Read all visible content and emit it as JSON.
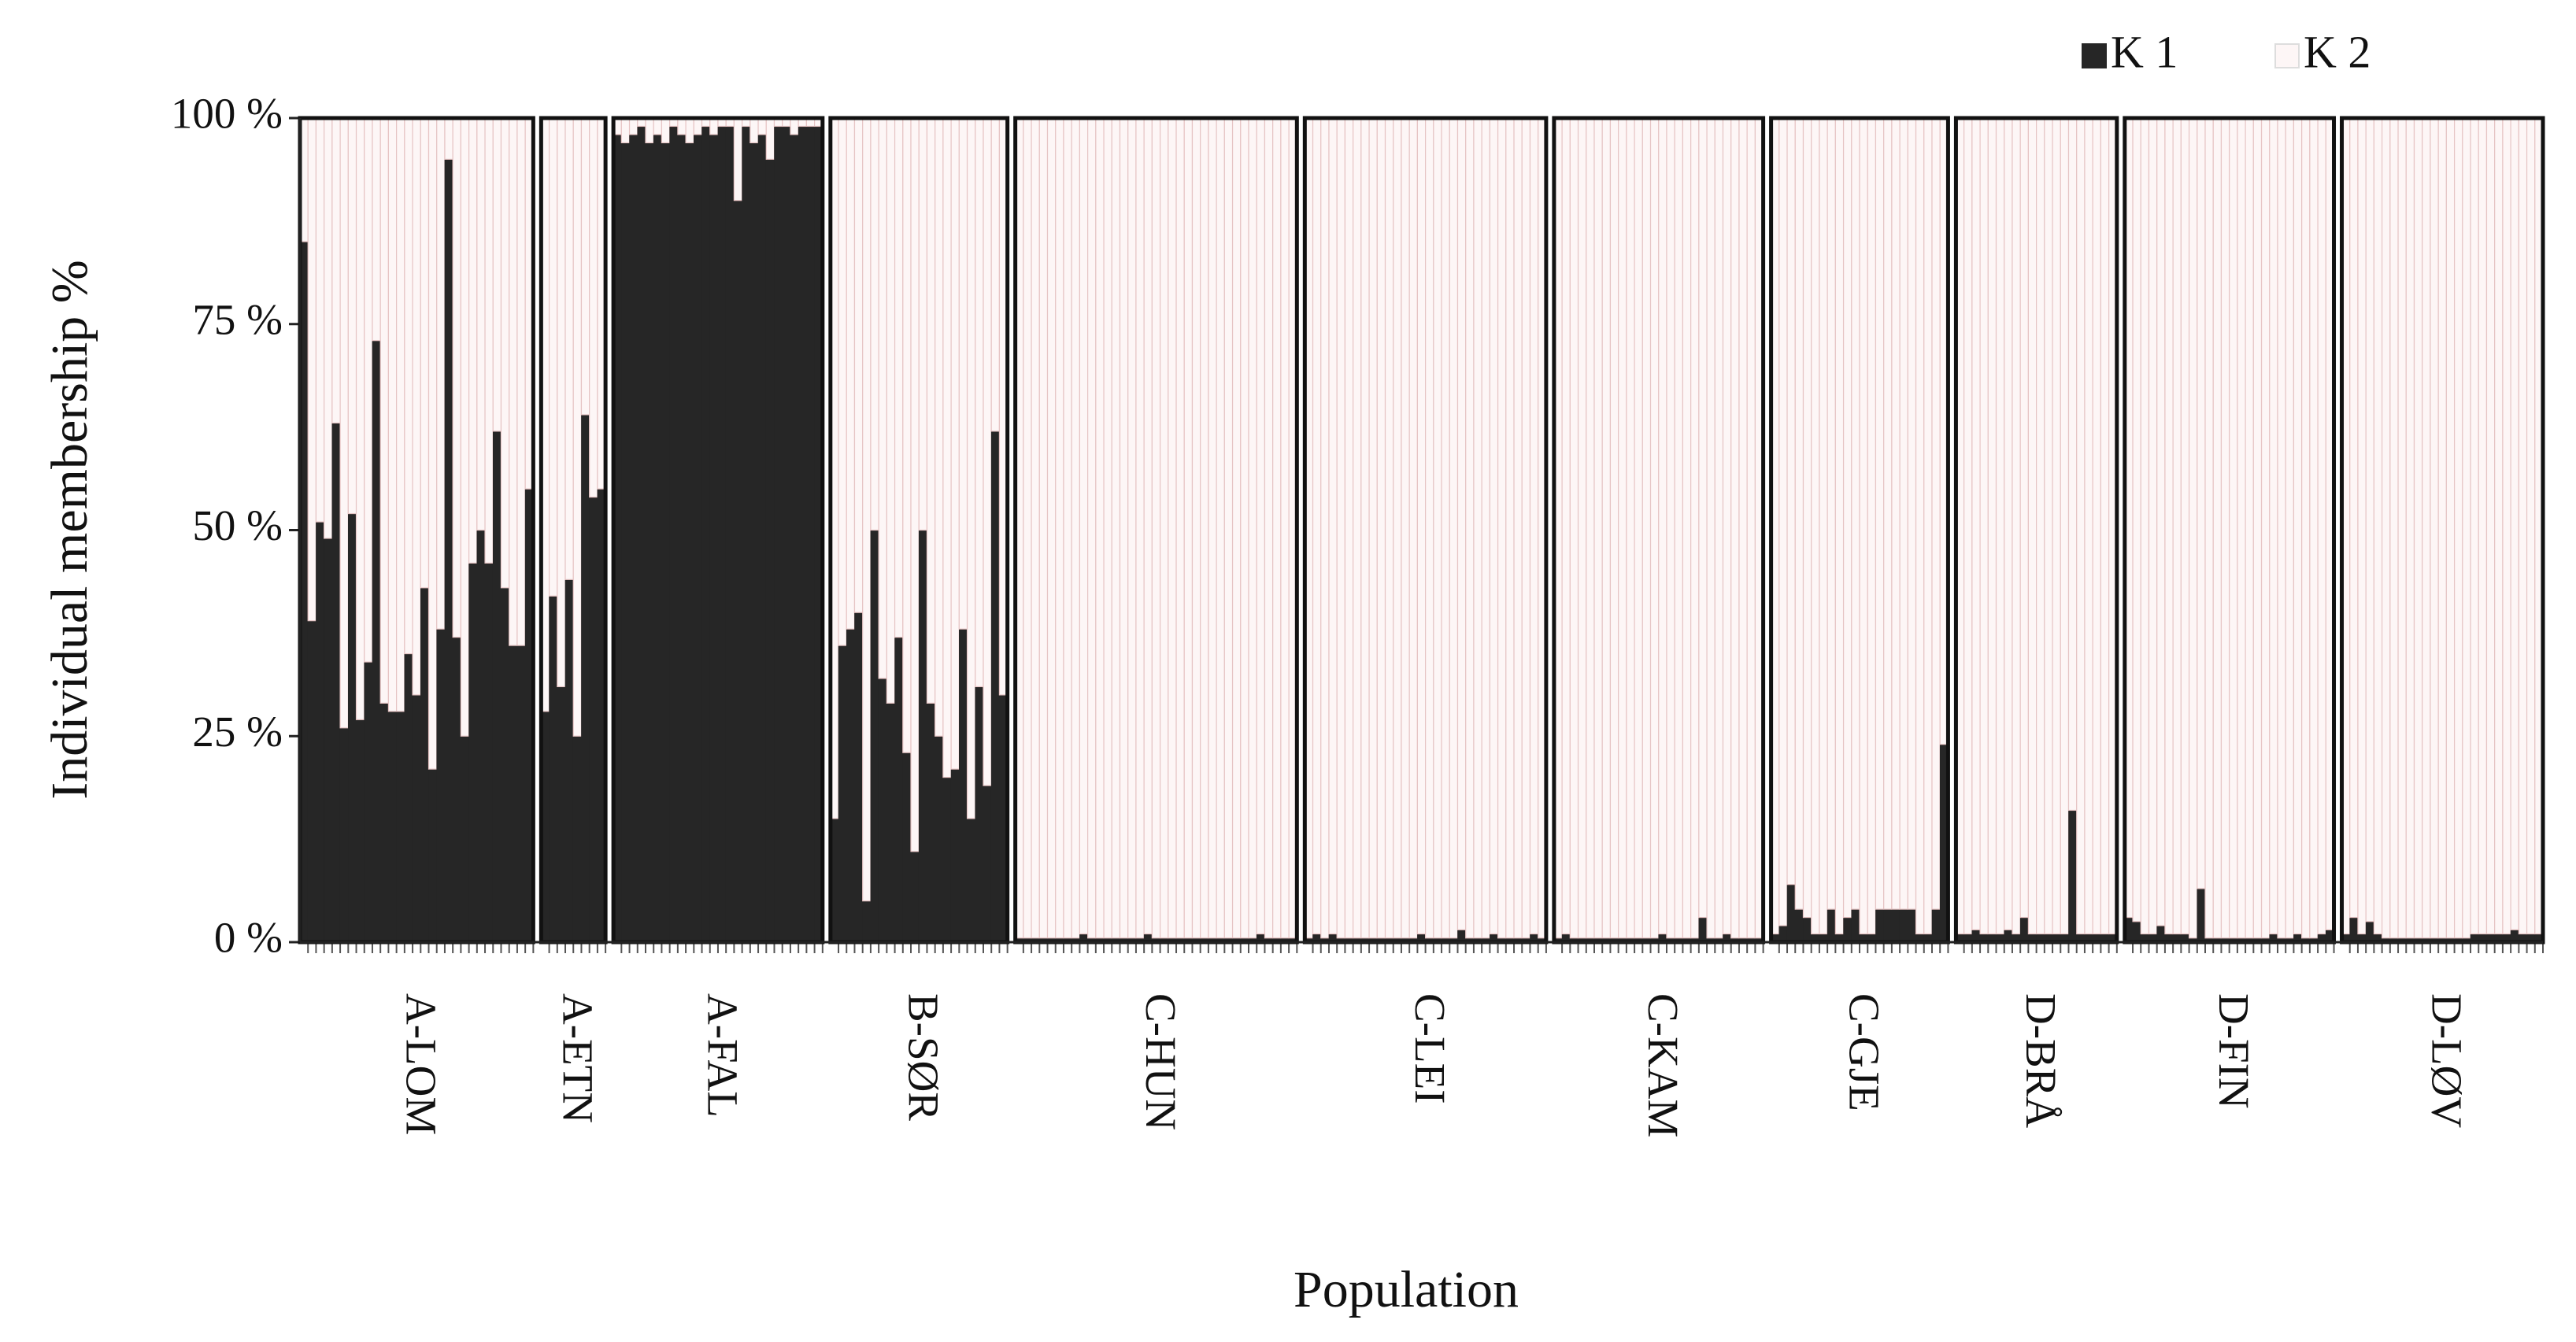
{
  "chart_data": {
    "type": "stacked-bar",
    "x_label": "Population",
    "y_label": "Individual membership %",
    "categories": [
      "A-LOM",
      "A-ETN",
      "A-FAL",
      "B-SØR",
      "C-HUN",
      "C-LEI",
      "C-KAM",
      "C-GJE",
      "D-BRÅ",
      "D-FIN",
      "D-LØV"
    ],
    "ylim": [
      0,
      100
    ],
    "yticks": [
      {
        "value": 0,
        "label": "0 %"
      },
      {
        "value": 25,
        "label": "25 %"
      },
      {
        "value": 50,
        "label": "50 %"
      },
      {
        "value": 75,
        "label": "75 %"
      },
      {
        "value": 100,
        "label": "100 %"
      }
    ],
    "grid": false,
    "legend": "top-right",
    "series": [
      {
        "name": "K 1",
        "color": "#262626",
        "values": [
          [
            85,
            39,
            51,
            49,
            63,
            26,
            52,
            27,
            34,
            73,
            29,
            28,
            28,
            35,
            30,
            43,
            21,
            38,
            95,
            37,
            25,
            46,
            50,
            46,
            62,
            43,
            36,
            36,
            55
          ],
          [
            28,
            42,
            31,
            44,
            25,
            64,
            54,
            55
          ],
          [
            98,
            97,
            98,
            99,
            97,
            98,
            97,
            99,
            98,
            97,
            98,
            99,
            98,
            99,
            99,
            90,
            99,
            97,
            98,
            95,
            99,
            99,
            98,
            99,
            99,
            99
          ],
          [
            15,
            36,
            38,
            40,
            5,
            50,
            32,
            29,
            37,
            23,
            11,
            50,
            29,
            25,
            20,
            21,
            38,
            15,
            31,
            19,
            62,
            30
          ],
          [
            0.5,
            0.5,
            0.5,
            0.5,
            0.5,
            0.5,
            0.5,
            0.5,
            1,
            0.5,
            0.5,
            0.5,
            0.5,
            0.5,
            0.5,
            0.5,
            1,
            0.5,
            0.5,
            0.5,
            0.5,
            0.5,
            0.5,
            0.5,
            0.5,
            0.5,
            0.5,
            0.5,
            0.5,
            0.5,
            1,
            0.5,
            0.5,
            0.5,
            0.5
          ],
          [
            0.5,
            1,
            0.5,
            1,
            0.5,
            0.5,
            0.5,
            0.5,
            0.5,
            0.5,
            0.5,
            0.5,
            0.5,
            0.5,
            1,
            0.5,
            0.5,
            0.5,
            0.5,
            1.5,
            0.5,
            0.5,
            0.5,
            1,
            0.5,
            0.5,
            0.5,
            0.5,
            1,
            0.5
          ],
          [
            0.5,
            1,
            0.5,
            0.5,
            0.5,
            0.5,
            0.5,
            0.5,
            0.5,
            0.5,
            0.5,
            0.5,
            0.5,
            1,
            0.5,
            0.5,
            0.5,
            0.5,
            3,
            0.5,
            0.5,
            1,
            0.5,
            0.5,
            0.5,
            0.5
          ],
          [
            1,
            2,
            7,
            4,
            3,
            1,
            1,
            4,
            1,
            3,
            4,
            1,
            1,
            4,
            4,
            4,
            4,
            4,
            1,
            1,
            4,
            24
          ],
          [
            1,
            1,
            1.5,
            1,
            1,
            1,
            1.5,
            1,
            3,
            1,
            1,
            1,
            1,
            1,
            16,
            1,
            1,
            1,
            1,
            1
          ],
          [
            3,
            2.5,
            1,
            1,
            2,
            1,
            1,
            1,
            0.5,
            6.5,
            0.5,
            0.5,
            0.5,
            0.5,
            0.5,
            0.5,
            0.5,
            0.5,
            1,
            0.5,
            0.5,
            1,
            0.5,
            0.5,
            1,
            1.5
          ],
          [
            1,
            3,
            1,
            2.5,
            1,
            0.5,
            0.5,
            0.5,
            0.5,
            0.5,
            0.5,
            0.5,
            0.5,
            0.5,
            0.5,
            0.5,
            1,
            1,
            1,
            1,
            1,
            1.5,
            1,
            1,
            1
          ]
        ]
      },
      {
        "name": "K 2",
        "color": "#fdf6f6",
        "values": [
          [
            15,
            61,
            49,
            51,
            37,
            74,
            48,
            73,
            66,
            27,
            71,
            72,
            72,
            65,
            70,
            57,
            79,
            62,
            5,
            63,
            75,
            54,
            50,
            54,
            38,
            57,
            64,
            64,
            45
          ],
          [
            72,
            58,
            69,
            56,
            75,
            36,
            46,
            45
          ],
          [
            2,
            3,
            2,
            1,
            3,
            2,
            3,
            1,
            2,
            3,
            2,
            1,
            2,
            1,
            1,
            10,
            1,
            3,
            2,
            5,
            1,
            1,
            2,
            1,
            1,
            1
          ],
          [
            85,
            64,
            62,
            60,
            95,
            50,
            68,
            71,
            63,
            77,
            89,
            50,
            71,
            75,
            80,
            79,
            62,
            85,
            69,
            81,
            38,
            70
          ],
          [
            99.5,
            99.5,
            99.5,
            99.5,
            99.5,
            99.5,
            99.5,
            99.5,
            99,
            99.5,
            99.5,
            99.5,
            99.5,
            99.5,
            99.5,
            99.5,
            99,
            99.5,
            99.5,
            99.5,
            99.5,
            99.5,
            99.5,
            99.5,
            99.5,
            99.5,
            99.5,
            99.5,
            99.5,
            99.5,
            99,
            99.5,
            99.5,
            99.5,
            99.5
          ],
          [
            99.5,
            99,
            99.5,
            99,
            99.5,
            99.5,
            99.5,
            99.5,
            99.5,
            99.5,
            99.5,
            99.5,
            99.5,
            99.5,
            99,
            99.5,
            99.5,
            99.5,
            99.5,
            98.5,
            99.5,
            99.5,
            99.5,
            99,
            99.5,
            99.5,
            99.5,
            99.5,
            99,
            99.5
          ],
          [
            99.5,
            99,
            99.5,
            99.5,
            99.5,
            99.5,
            99.5,
            99.5,
            99.5,
            99.5,
            99.5,
            99.5,
            99.5,
            99,
            99.5,
            99.5,
            99.5,
            99.5,
            97,
            99.5,
            99.5,
            99,
            99.5,
            99.5,
            99.5,
            99.5
          ],
          [
            99,
            98,
            93,
            96,
            97,
            99,
            99,
            96,
            99,
            97,
            96,
            99,
            99,
            96,
            96,
            96,
            96,
            96,
            99,
            99,
            96,
            76
          ],
          [
            99,
            99,
            98.5,
            99,
            99,
            99,
            98.5,
            99,
            97,
            99,
            99,
            99,
            99,
            99,
            84,
            99,
            99,
            99,
            99,
            99
          ],
          [
            97,
            97.5,
            99,
            99,
            98,
            99,
            99,
            99,
            99.5,
            93.5,
            99.5,
            99.5,
            99.5,
            99.5,
            99.5,
            99.5,
            99.5,
            99.5,
            99,
            99.5,
            99.5,
            99,
            99.5,
            99.5,
            99,
            98.5
          ],
          [
            99,
            97,
            99,
            97.5,
            99,
            99.5,
            99.5,
            99.5,
            99.5,
            99.5,
            99.5,
            99.5,
            99.5,
            99.5,
            99.5,
            99.5,
            99,
            99,
            99,
            99,
            99,
            98.5,
            99,
            99,
            99
          ]
        ]
      }
    ]
  }
}
